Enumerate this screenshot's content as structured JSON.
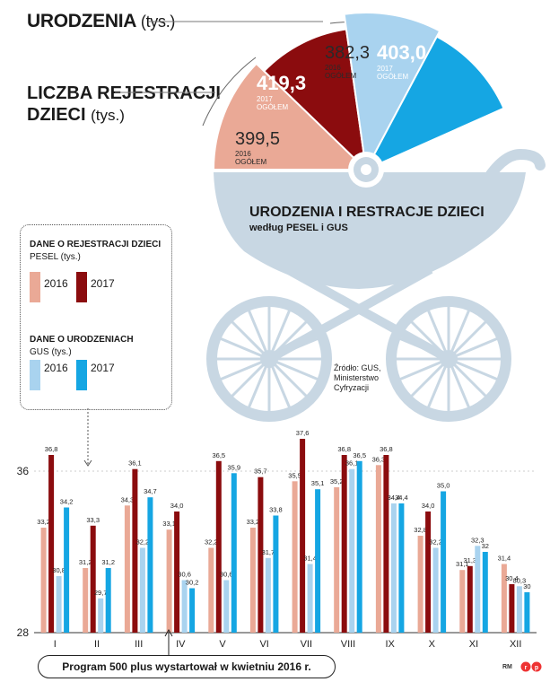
{
  "header": {
    "title": "URODZENIA",
    "title_unit": "(tys.)",
    "reg_title_line1": "LICZBA REJESTRACJI",
    "reg_title_line2": "DZIECI",
    "reg_unit": "(tys.)"
  },
  "slices": [
    {
      "value": "399,5",
      "sub1": "2016",
      "sub2": "OGÓŁEM"
    },
    {
      "value": "419,3",
      "sub1": "2017",
      "sub2": "OGÓŁEM"
    },
    {
      "value": "382,3",
      "sub1": "2016",
      "sub2": "OGÓŁEM"
    },
    {
      "value": "403,0",
      "sub1": "2017",
      "sub2": "OGÓŁEM"
    }
  ],
  "carriage": {
    "title": "URODZENIA I RESTRACJE DZIECI",
    "subtitle": "według PESEL i GUS"
  },
  "source": "Źródło: GUS, Ministerstwo Cyfryzacji",
  "legend": {
    "reg_heading": "DANE O REJESTRACJI DZIECI",
    "reg_sub": "PESEL (tys.)",
    "births_heading": "DANE O URODZENIACH",
    "births_sub": "GUS (tys.)",
    "y2016": "2016",
    "y2017": "2017"
  },
  "banner": "Program 500 plus wystartował w kwietniu 2016 r.",
  "credit": "RM",
  "colors": {
    "pesel_2016": "#eaa996",
    "pesel_2017": "#8b0c0e",
    "gus_2016": "#a9d3ef",
    "gus_2017": "#15a6e3",
    "carriage": "#c8d7e3"
  },
  "chart_data": {
    "type": "bar",
    "categories": [
      "I",
      "II",
      "III",
      "IV",
      "V",
      "VI",
      "VII",
      "VIII",
      "IX",
      "X",
      "XI",
      "XII"
    ],
    "series": [
      {
        "name": "2016",
        "group": "PESEL",
        "values": [
          33.2,
          31.2,
          34.3,
          33.1,
          32.2,
          33.2,
          35.5,
          35.2,
          36.3,
          32.8,
          31.1,
          31.4
        ],
        "labels": [
          "33,2",
          "31,2",
          "34,3",
          "33,1",
          "32,2",
          "33,2",
          "35,5",
          "35,2",
          "36,3",
          "32,8",
          "31,1",
          "31,4"
        ]
      },
      {
        "name": "2017",
        "group": "PESEL",
        "values": [
          36.8,
          33.3,
          36.1,
          34.0,
          36.5,
          35.7,
          37.6,
          36.8,
          36.8,
          34.0,
          31.3,
          30.4
        ],
        "labels": [
          "36,8",
          "33,3",
          "36,1",
          "34,0",
          "36,5",
          "35,7",
          "37,6",
          "36,8",
          "36,8",
          "34,0",
          "31,3",
          "30,4"
        ]
      },
      {
        "name": "2016",
        "group": "GUS",
        "values": [
          30.8,
          29.7,
          32.2,
          30.6,
          30.6,
          31.7,
          31.4,
          36.1,
          34.4,
          32.2,
          32.3,
          30.3
        ],
        "labels": [
          "30,8",
          "29,7",
          "32,2",
          "30,6",
          "30,6",
          "31,7",
          "31,4",
          "36,1",
          "34,4",
          "32,2",
          "32,3",
          "30,3"
        ]
      },
      {
        "name": "2017",
        "group": "GUS",
        "values": [
          34.2,
          31.2,
          34.7,
          30.2,
          35.9,
          33.8,
          35.1,
          36.5,
          34.4,
          35.0,
          32.0,
          30.0
        ],
        "labels": [
          "34,2",
          "31,2",
          "34,7",
          "30,2",
          "35,9",
          "33,8",
          "35,1",
          "36,5",
          "34,4",
          "35,0",
          "32",
          "30"
        ]
      }
    ],
    "ylim": [
      28,
      38
    ],
    "yticks": [
      "28",
      "36"
    ],
    "grid": false
  }
}
